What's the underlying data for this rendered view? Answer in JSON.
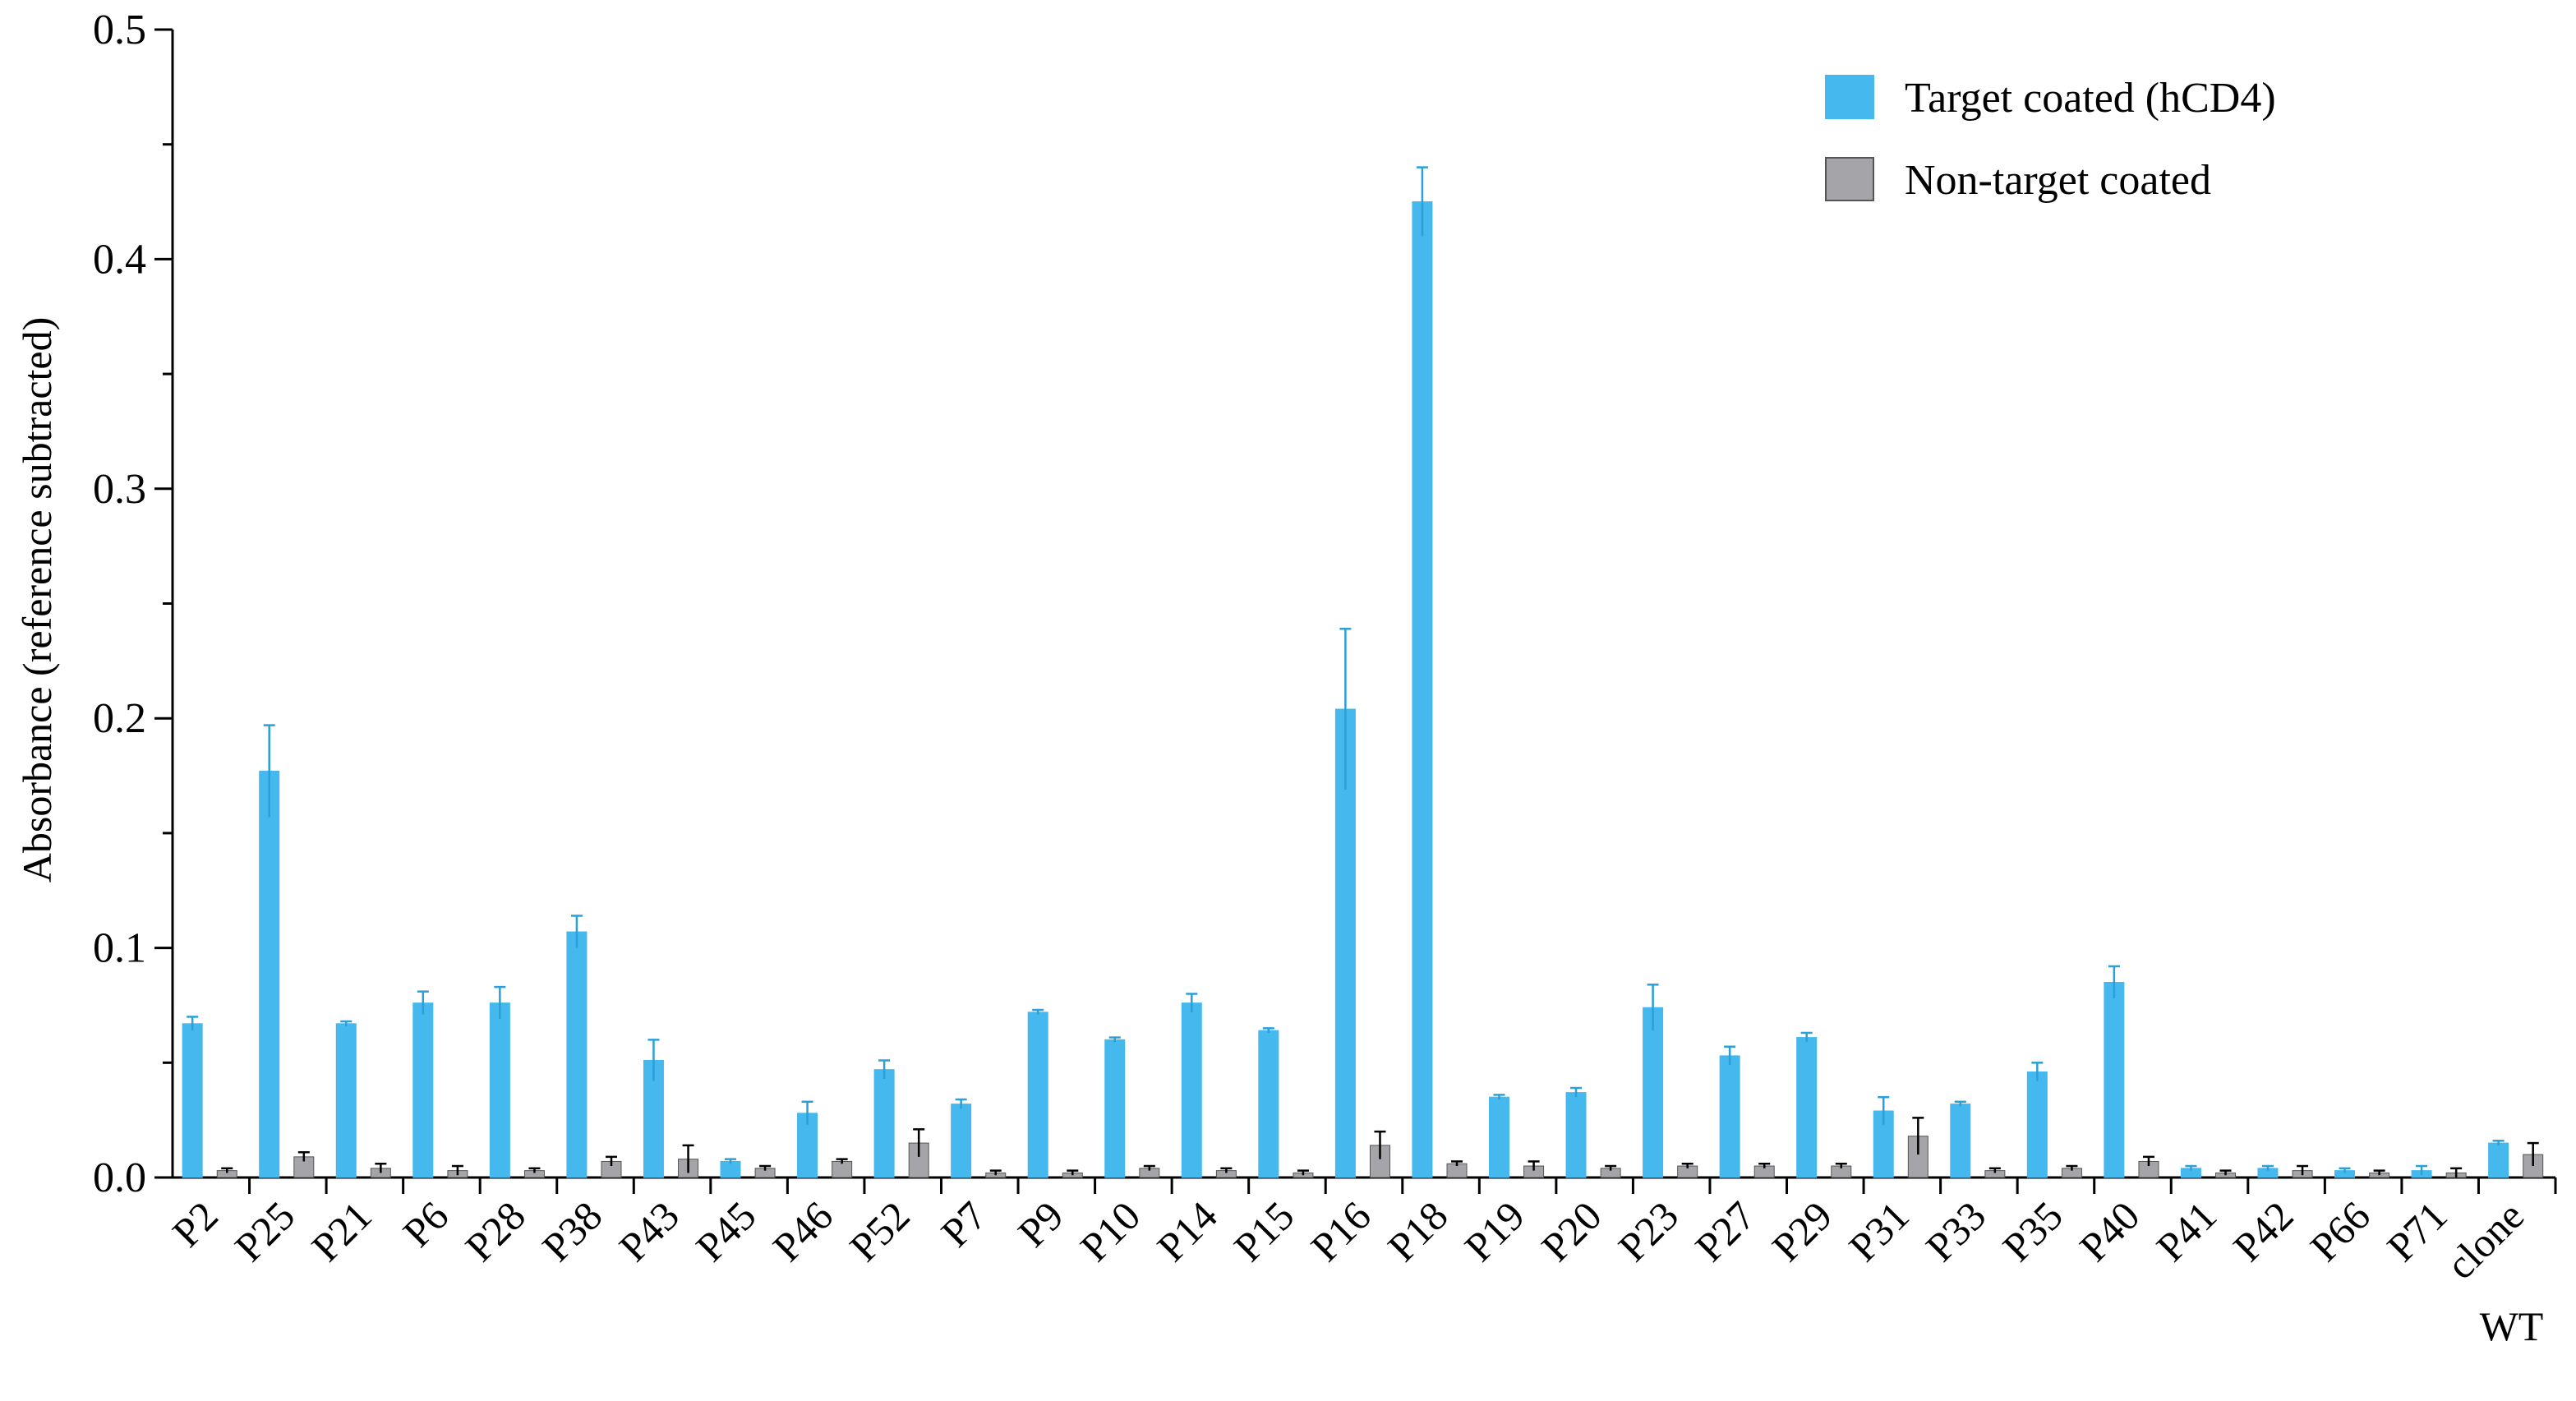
{
  "chart_data": {
    "type": "bar",
    "title": "",
    "xlabel": "",
    "ylabel": "Absorbance (reference subtracted)",
    "ylim": [
      0,
      0.5
    ],
    "yticks": [
      "0.0",
      "0.1",
      "0.2",
      "0.3",
      "0.4",
      "0.5"
    ],
    "grid": false,
    "legend_position": "top-right",
    "categories": [
      "P2",
      "P25",
      "P21",
      "P6",
      "P28",
      "P38",
      "P43",
      "P45",
      "P46",
      "P52",
      "P7",
      "P9",
      "P10",
      "P14",
      "P15",
      "P16",
      "P18",
      "P19",
      "P20",
      "P23",
      "P27",
      "P29",
      "P31",
      "P33",
      "P35",
      "P40",
      "P41",
      "P42",
      "P66",
      "P71",
      "WT clone"
    ],
    "series": [
      {
        "name": "Target coated (hCD4)",
        "color": "#45b8ee",
        "values": [
          0.067,
          0.177,
          0.067,
          0.076,
          0.076,
          0.107,
          0.051,
          0.007,
          0.028,
          0.047,
          0.032,
          0.072,
          0.06,
          0.076,
          0.064,
          0.204,
          0.425,
          0.035,
          0.037,
          0.074,
          0.053,
          0.061,
          0.029,
          0.032,
          0.046,
          0.085,
          0.004,
          0.004,
          0.003,
          0.003,
          0.015
        ],
        "errors": [
          0.003,
          0.02,
          0.001,
          0.005,
          0.007,
          0.007,
          0.009,
          0.001,
          0.005,
          0.004,
          0.002,
          0.001,
          0.001,
          0.004,
          0.001,
          0.035,
          0.015,
          0.001,
          0.002,
          0.01,
          0.004,
          0.002,
          0.006,
          0.001,
          0.004,
          0.007,
          0.001,
          0.001,
          0.001,
          0.002,
          0.001
        ]
      },
      {
        "name": "Non-target coated",
        "color": "#a4a4a9",
        "values": [
          0.003,
          0.009,
          0.004,
          0.003,
          0.003,
          0.007,
          0.008,
          0.004,
          0.007,
          0.015,
          0.002,
          0.002,
          0.004,
          0.003,
          0.002,
          0.014,
          0.006,
          0.005,
          0.004,
          0.005,
          0.005,
          0.005,
          0.018,
          0.003,
          0.004,
          0.007,
          0.002,
          0.003,
          0.002,
          0.002,
          0.01
        ],
        "errors": [
          0.001,
          0.002,
          0.002,
          0.002,
          0.001,
          0.002,
          0.006,
          0.001,
          0.001,
          0.006,
          0.001,
          0.001,
          0.001,
          0.001,
          0.001,
          0.006,
          0.001,
          0.002,
          0.001,
          0.001,
          0.001,
          0.001,
          0.008,
          0.001,
          0.001,
          0.002,
          0.001,
          0.002,
          0.001,
          0.002,
          0.005
        ]
      }
    ]
  }
}
